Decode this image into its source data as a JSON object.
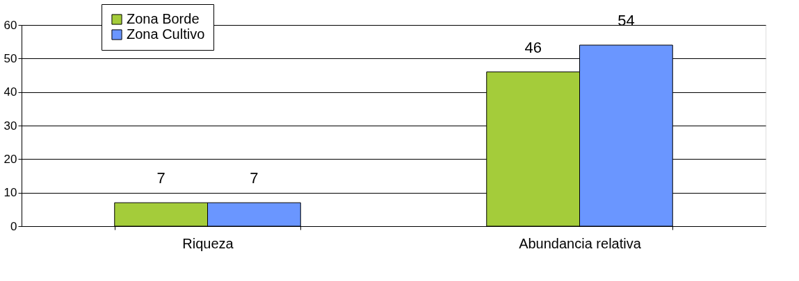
{
  "chart_data": {
    "type": "bar",
    "categories": [
      "Riqueza",
      "Abundancia relativa"
    ],
    "series": [
      {
        "name": "Zona Borde",
        "color": "#a4cc3a",
        "values": [
          7,
          46
        ]
      },
      {
        "name": "Zona Cultivo",
        "color": "#6a96ff",
        "values": [
          7,
          54
        ]
      }
    ],
    "ylim": [
      0,
      60
    ],
    "yticks": [
      0,
      10,
      20,
      30,
      40,
      50,
      60
    ],
    "grid": "y",
    "legend": "top left",
    "data_labels": true
  }
}
